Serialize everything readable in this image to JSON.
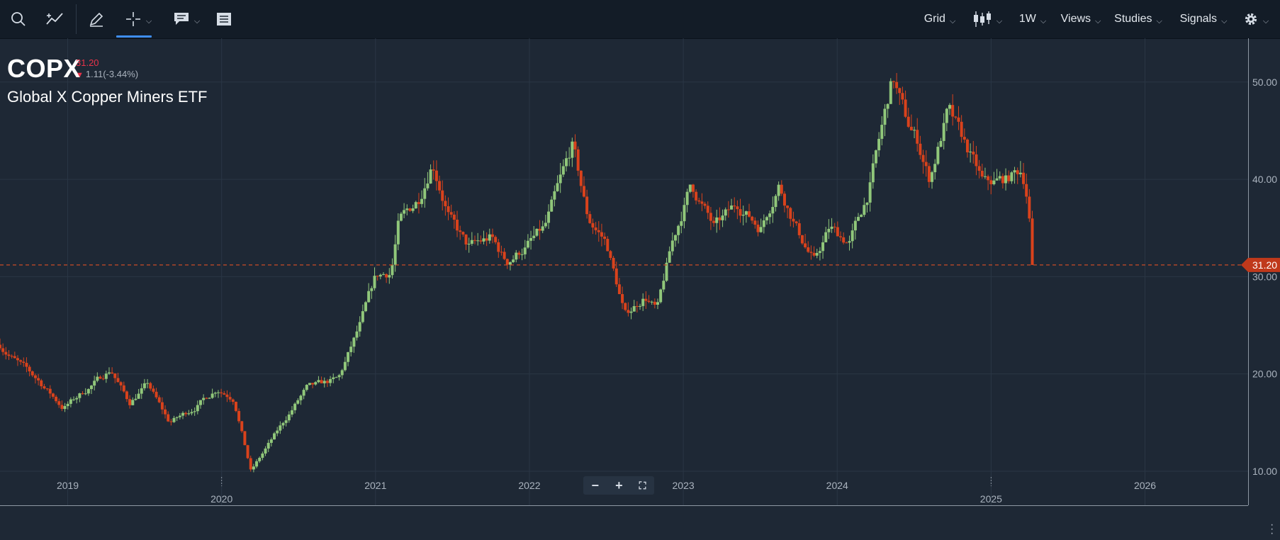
{
  "toolbar": {
    "left_icons": [
      "search-icon",
      "indicator-icon",
      "pencil-icon",
      "crosshair-icon",
      "annotation-icon",
      "table-icon"
    ],
    "grid_label": "Grid",
    "interval_label": "1W",
    "views_label": "Views",
    "studies_label": "Studies",
    "signals_label": "Signals",
    "chart_style_icon": "candlestick-icon",
    "settings_icon": "gear-icon"
  },
  "quote": {
    "symbol": "COPX",
    "last": "31.20",
    "change": "1.11(-3.44%)",
    "name": "Global X Copper Miners ETF"
  },
  "zoom": {
    "minus": "−",
    "plus": "+",
    "fit_icon": "fullscreen-icon"
  },
  "colors": {
    "up": "#90c77a",
    "down": "#d9421c",
    "price_line": "#c94a26",
    "background": "#1e2835"
  },
  "chart_data": {
    "type": "candlestick",
    "interval": "1W",
    "last_price_label": "31.20",
    "y_ticks": [
      10,
      20,
      30,
      40,
      50
    ],
    "y_tick_labels": [
      "10.00",
      "20.00",
      "30.00",
      "40.00",
      "50.00"
    ],
    "ylim": [
      6.5,
      54.5
    ],
    "x_ticks": [
      "2019",
      "2020",
      "2021",
      "2022",
      "2023",
      "2024",
      "2025",
      "2026"
    ],
    "xlim": [
      2018.56,
      2026.67
    ],
    "grid": true,
    "key_points": [
      [
        2018.56,
        23.0
      ],
      [
        2018.65,
        21.5
      ],
      [
        2018.8,
        19.5
      ],
      [
        2018.97,
        16.5
      ],
      [
        2019.13,
        18.5
      ],
      [
        2019.28,
        20.5
      ],
      [
        2019.4,
        17.0
      ],
      [
        2019.52,
        19.0
      ],
      [
        2019.66,
        15.0
      ],
      [
        2019.82,
        16.5
      ],
      [
        2019.97,
        18.5
      ],
      [
        2020.08,
        17.5
      ],
      [
        2020.19,
        10.0
      ],
      [
        2020.4,
        15.0
      ],
      [
        2020.55,
        18.5
      ],
      [
        2020.76,
        19.5
      ],
      [
        2020.9,
        25.0
      ],
      [
        2021.0,
        30.0
      ],
      [
        2021.1,
        30.5
      ],
      [
        2021.15,
        35.5
      ],
      [
        2021.28,
        38.0
      ],
      [
        2021.37,
        42.0
      ],
      [
        2021.48,
        36.0
      ],
      [
        2021.6,
        33.0
      ],
      [
        2021.75,
        34.0
      ],
      [
        2021.85,
        31.5
      ],
      [
        2021.97,
        33.0
      ],
      [
        2022.1,
        35.0
      ],
      [
        2022.28,
        43.5
      ],
      [
        2022.38,
        36.0
      ],
      [
        2022.5,
        33.5
      ],
      [
        2022.62,
        26.0
      ],
      [
        2022.75,
        28.0
      ],
      [
        2022.83,
        26.5
      ],
      [
        2022.92,
        33.0
      ],
      [
        2023.05,
        39.5
      ],
      [
        2023.2,
        35.0
      ],
      [
        2023.35,
        37.5
      ],
      [
        2023.5,
        35.0
      ],
      [
        2023.62,
        39.5
      ],
      [
        2023.75,
        34.5
      ],
      [
        2023.85,
        31.5
      ],
      [
        2023.95,
        35.0
      ],
      [
        2024.08,
        33.5
      ],
      [
        2024.2,
        38.5
      ],
      [
        2024.36,
        50.5
      ],
      [
        2024.45,
        46.0
      ],
      [
        2024.52,
        44.0
      ],
      [
        2024.6,
        40.0
      ],
      [
        2024.72,
        47.0
      ],
      [
        2024.85,
        43.0
      ],
      [
        2024.95,
        39.5
      ],
      [
        2025.1,
        40.0
      ],
      [
        2025.2,
        41.0
      ],
      [
        2025.24,
        38.0
      ],
      [
        2025.27,
        31.2
      ]
    ],
    "last_close": 31.2
  }
}
